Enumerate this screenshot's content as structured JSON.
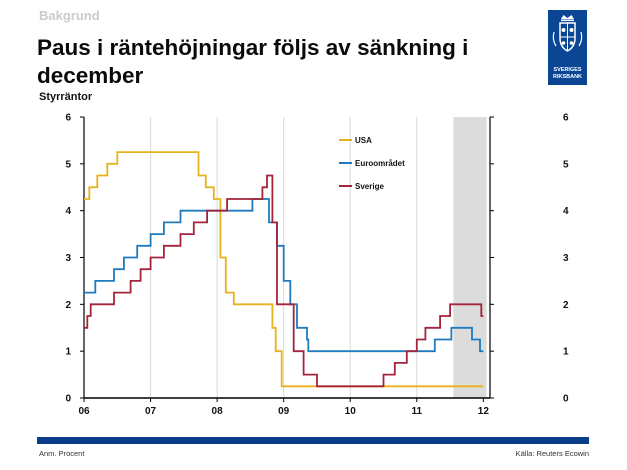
{
  "header": {
    "kicker": "Bakgrund",
    "title": "Paus i räntehöjningar följs av sänkning i december",
    "subtitle": "Styrräntor"
  },
  "logo": {
    "name_line1": "SVERIGES",
    "name_line2": "RIKSBANK"
  },
  "footer": {
    "note": "Anm. Procent",
    "source": "Källa: Reuters Ecowin"
  },
  "colors": {
    "usa": "#e8b21c",
    "euro": "#1f7bbd",
    "sweden": "#a3243b",
    "shade": "#dcdcdc",
    "brand": "#0b4694"
  },
  "chart_data": {
    "type": "line",
    "title": "Styrräntor",
    "ylabel": "Procent",
    "xlim": [
      2006.0,
      2012.1
    ],
    "ylim": [
      0,
      6
    ],
    "x_ticks": [
      2006,
      2007,
      2008,
      2009,
      2010,
      2011,
      2012
    ],
    "x_tick_labels": [
      "06",
      "07",
      "08",
      "09",
      "10",
      "11",
      "12"
    ],
    "y_ticks": [
      0,
      1,
      2,
      3,
      4,
      5,
      6
    ],
    "y_tick_labels": [
      "0",
      "1",
      "2",
      "3",
      "4",
      "5",
      "6"
    ],
    "shaded_region": [
      2011.55,
      2012.05
    ],
    "series": [
      {
        "name": "USA",
        "color": "#e8b21c",
        "points": [
          [
            2006.0,
            4.25
          ],
          [
            2006.08,
            4.5
          ],
          [
            2006.2,
            4.75
          ],
          [
            2006.35,
            5.0
          ],
          [
            2006.5,
            5.25
          ],
          [
            2007.7,
            5.25
          ],
          [
            2007.72,
            4.75
          ],
          [
            2007.83,
            4.5
          ],
          [
            2007.95,
            4.25
          ],
          [
            2008.05,
            3.0
          ],
          [
            2008.13,
            2.25
          ],
          [
            2008.25,
            2.0
          ],
          [
            2008.78,
            2.0
          ],
          [
            2008.83,
            1.5
          ],
          [
            2008.88,
            1.0
          ],
          [
            2008.97,
            0.25
          ],
          [
            2012.0,
            0.25
          ]
        ]
      },
      {
        "name": "Euroområdet",
        "color": "#1f7bbd",
        "points": [
          [
            2006.0,
            2.25
          ],
          [
            2006.17,
            2.5
          ],
          [
            2006.45,
            2.75
          ],
          [
            2006.6,
            3.0
          ],
          [
            2006.8,
            3.25
          ],
          [
            2007.0,
            3.5
          ],
          [
            2007.2,
            3.75
          ],
          [
            2007.45,
            4.0
          ],
          [
            2008.53,
            4.25
          ],
          [
            2008.78,
            3.75
          ],
          [
            2008.9,
            3.25
          ],
          [
            2009.0,
            2.5
          ],
          [
            2009.1,
            2.0
          ],
          [
            2009.2,
            1.5
          ],
          [
            2009.35,
            1.25
          ],
          [
            2009.37,
            1.0
          ],
          [
            2011.27,
            1.25
          ],
          [
            2011.52,
            1.5
          ],
          [
            2011.83,
            1.25
          ],
          [
            2011.95,
            1.0
          ],
          [
            2012.0,
            1.0
          ]
        ]
      },
      {
        "name": "Sverige",
        "color": "#a3243b",
        "points": [
          [
            2006.0,
            1.5
          ],
          [
            2006.05,
            1.75
          ],
          [
            2006.1,
            2.0
          ],
          [
            2006.45,
            2.25
          ],
          [
            2006.7,
            2.5
          ],
          [
            2006.85,
            2.75
          ],
          [
            2007.0,
            3.0
          ],
          [
            2007.2,
            3.25
          ],
          [
            2007.45,
            3.5
          ],
          [
            2007.65,
            3.75
          ],
          [
            2007.85,
            4.0
          ],
          [
            2008.15,
            4.25
          ],
          [
            2008.68,
            4.5
          ],
          [
            2008.75,
            4.75
          ],
          [
            2008.83,
            3.75
          ],
          [
            2008.9,
            2.0
          ],
          [
            2009.15,
            1.0
          ],
          [
            2009.3,
            0.5
          ],
          [
            2009.5,
            0.25
          ],
          [
            2010.5,
            0.5
          ],
          [
            2010.67,
            0.75
          ],
          [
            2010.85,
            1.0
          ],
          [
            2011.0,
            1.25
          ],
          [
            2011.13,
            1.5
          ],
          [
            2011.35,
            1.75
          ],
          [
            2011.5,
            2.0
          ],
          [
            2011.97,
            1.75
          ],
          [
            2012.0,
            1.75
          ]
        ]
      }
    ]
  }
}
